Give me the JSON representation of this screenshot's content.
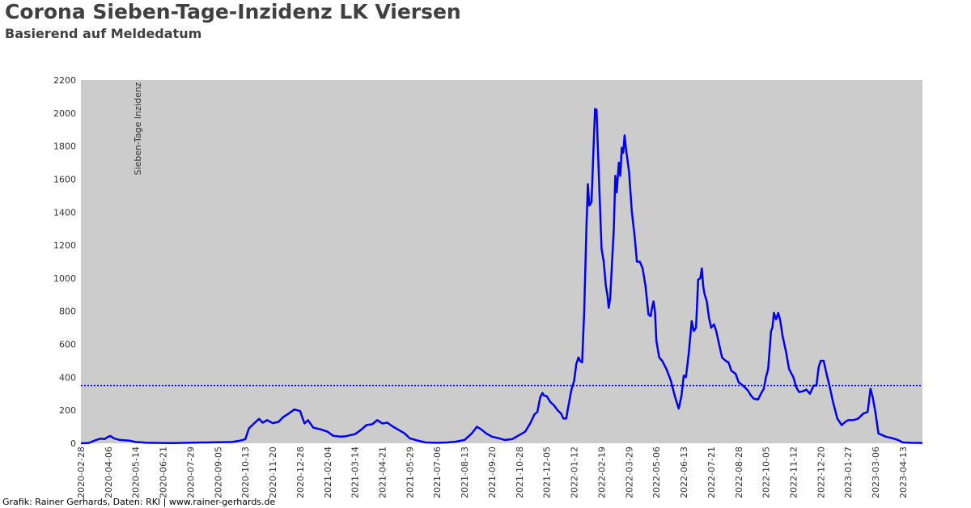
{
  "header": {
    "title": "Corona Sieben-Tage-Inzidenz LK Viersen",
    "subtitle": "Basierend auf Meldedatum"
  },
  "footer": {
    "credit": "Grafik: Rainer Gerhards, Daten: RKI | www.rainer-gerhards.de"
  },
  "colors": {
    "plot_background": "#cccccc",
    "line": "#0000ee",
    "threshold_line": "#0000cc"
  },
  "chart_data": {
    "type": "line",
    "title": "Corona Sieben-Tage-Inzidenz LK Viersen",
    "subtitle": "Basierend auf Meldedatum",
    "ylabel": "Sieben-Tage Inzidenz",
    "xlabel": "",
    "ylim": [
      0,
      2200
    ],
    "xlim": [
      "2020-02-28",
      "2023-05-10"
    ],
    "y_ticks": [
      0,
      200,
      400,
      600,
      800,
      1000,
      1200,
      1400,
      1600,
      1800,
      2000,
      2200
    ],
    "x_ticks": [
      "2020-02-28",
      "2020-04-06",
      "2020-05-14",
      "2020-06-21",
      "2020-07-29",
      "2020-09-05",
      "2020-10-13",
      "2020-11-20",
      "2020-12-28",
      "2021-02-04",
      "2021-03-14",
      "2021-04-21",
      "2021-05-29",
      "2021-07-06",
      "2021-08-13",
      "2021-09-20",
      "2021-10-28",
      "2021-12-05",
      "2022-01-12",
      "2022-02-19",
      "2022-03-29",
      "2022-05-06",
      "2022-06-13",
      "2022-07-21",
      "2022-08-28",
      "2022-10-05",
      "2022-11-12",
      "2022-12-20",
      "2023-01-27",
      "2023-03-06",
      "2023-04-13"
    ],
    "grid": false,
    "legend": "none",
    "reference_line": {
      "y": 350,
      "style": "dotted"
    },
    "series": [
      {
        "points": [
          [
            "2020-02-28",
            0
          ],
          [
            "2020-03-10",
            2
          ],
          [
            "2020-03-20",
            20
          ],
          [
            "2020-03-26",
            28
          ],
          [
            "2020-04-01",
            26
          ],
          [
            "2020-04-06",
            40
          ],
          [
            "2020-04-09",
            44
          ],
          [
            "2020-04-14",
            30
          ],
          [
            "2020-04-22",
            20
          ],
          [
            "2020-05-05",
            16
          ],
          [
            "2020-05-14",
            8
          ],
          [
            "2020-05-30",
            3
          ],
          [
            "2020-06-21",
            2
          ],
          [
            "2020-07-05",
            1
          ],
          [
            "2020-07-29",
            4
          ],
          [
            "2020-08-15",
            5
          ],
          [
            "2020-09-05",
            6
          ],
          [
            "2020-09-25",
            8
          ],
          [
            "2020-10-05",
            15
          ],
          [
            "2020-10-13",
            25
          ],
          [
            "2020-10-18",
            90
          ],
          [
            "2020-10-25",
            120
          ],
          [
            "2020-11-01",
            148
          ],
          [
            "2020-11-06",
            125
          ],
          [
            "2020-11-12",
            140
          ],
          [
            "2020-11-20",
            122
          ],
          [
            "2020-11-28",
            130
          ],
          [
            "2020-12-05",
            160
          ],
          [
            "2020-12-12",
            180
          ],
          [
            "2020-12-20",
            205
          ],
          [
            "2020-12-28",
            195
          ],
          [
            "2021-01-03",
            120
          ],
          [
            "2021-01-08",
            140
          ],
          [
            "2021-01-15",
            95
          ],
          [
            "2021-01-25",
            85
          ],
          [
            "2021-02-04",
            70
          ],
          [
            "2021-02-12",
            45
          ],
          [
            "2021-02-22",
            40
          ],
          [
            "2021-03-01",
            42
          ],
          [
            "2021-03-08",
            50
          ],
          [
            "2021-03-14",
            55
          ],
          [
            "2021-03-22",
            80
          ],
          [
            "2021-03-30",
            110
          ],
          [
            "2021-04-07",
            115
          ],
          [
            "2021-04-14",
            140
          ],
          [
            "2021-04-21",
            120
          ],
          [
            "2021-04-28",
            125
          ],
          [
            "2021-05-06",
            100
          ],
          [
            "2021-05-14",
            80
          ],
          [
            "2021-05-22",
            60
          ],
          [
            "2021-05-29",
            30
          ],
          [
            "2021-06-10",
            15
          ],
          [
            "2021-06-20",
            5
          ],
          [
            "2021-07-06",
            3
          ],
          [
            "2021-07-20",
            5
          ],
          [
            "2021-08-01",
            10
          ],
          [
            "2021-08-13",
            20
          ],
          [
            "2021-08-23",
            60
          ],
          [
            "2021-08-30",
            100
          ],
          [
            "2021-09-05",
            85
          ],
          [
            "2021-09-12",
            60
          ],
          [
            "2021-09-20",
            40
          ],
          [
            "2021-09-30",
            30
          ],
          [
            "2021-10-08",
            20
          ],
          [
            "2021-10-18",
            25
          ],
          [
            "2021-10-28",
            50
          ],
          [
            "2021-11-05",
            70
          ],
          [
            "2021-11-12",
            120
          ],
          [
            "2021-11-18",
            175
          ],
          [
            "2021-11-22",
            190
          ],
          [
            "2021-11-26",
            280
          ],
          [
            "2021-11-29",
            305
          ],
          [
            "2021-12-01",
            290
          ],
          [
            "2021-12-05",
            285
          ],
          [
            "2021-12-10",
            250
          ],
          [
            "2021-12-15",
            230
          ],
          [
            "2021-12-20",
            200
          ],
          [
            "2021-12-25",
            180
          ],
          [
            "2021-12-28",
            150
          ],
          [
            "2022-01-01",
            150
          ],
          [
            "2022-01-03",
            200
          ],
          [
            "2022-01-08",
            320
          ],
          [
            "2022-01-12",
            380
          ],
          [
            "2022-01-15",
            480
          ],
          [
            "2022-01-18",
            520
          ],
          [
            "2022-01-20",
            500
          ],
          [
            "2022-01-23",
            490
          ],
          [
            "2022-01-26",
            800
          ],
          [
            "2022-01-29",
            1300
          ],
          [
            "2022-01-31",
            1570
          ],
          [
            "2022-02-02",
            1440
          ],
          [
            "2022-02-05",
            1460
          ],
          [
            "2022-02-08",
            1800
          ],
          [
            "2022-02-10",
            2025
          ],
          [
            "2022-02-12",
            2020
          ],
          [
            "2022-02-15",
            1650
          ],
          [
            "2022-02-19",
            1180
          ],
          [
            "2022-02-22",
            1100
          ],
          [
            "2022-02-25",
            950
          ],
          [
            "2022-02-27",
            900
          ],
          [
            "2022-03-01",
            820
          ],
          [
            "2022-03-03",
            880
          ],
          [
            "2022-03-05",
            1050
          ],
          [
            "2022-03-08",
            1300
          ],
          [
            "2022-03-10",
            1620
          ],
          [
            "2022-03-12",
            1520
          ],
          [
            "2022-03-15",
            1700
          ],
          [
            "2022-03-17",
            1620
          ],
          [
            "2022-03-19",
            1790
          ],
          [
            "2022-03-21",
            1760
          ],
          [
            "2022-03-23",
            1865
          ],
          [
            "2022-03-25",
            1780
          ],
          [
            "2022-03-29",
            1650
          ],
          [
            "2022-04-02",
            1400
          ],
          [
            "2022-04-06",
            1250
          ],
          [
            "2022-04-09",
            1100
          ],
          [
            "2022-04-13",
            1100
          ],
          [
            "2022-04-17",
            1060
          ],
          [
            "2022-04-21",
            950
          ],
          [
            "2022-04-25",
            780
          ],
          [
            "2022-04-28",
            770
          ],
          [
            "2022-04-30",
            820
          ],
          [
            "2022-05-02",
            860
          ],
          [
            "2022-05-04",
            800
          ],
          [
            "2022-05-06",
            620
          ],
          [
            "2022-05-10",
            520
          ],
          [
            "2022-05-14",
            500
          ],
          [
            "2022-05-20",
            450
          ],
          [
            "2022-05-26",
            380
          ],
          [
            "2022-06-01",
            280
          ],
          [
            "2022-06-06",
            210
          ],
          [
            "2022-06-10",
            290
          ],
          [
            "2022-06-13",
            410
          ],
          [
            "2022-06-16",
            400
          ],
          [
            "2022-06-20",
            550
          ],
          [
            "2022-06-24",
            740
          ],
          [
            "2022-06-27",
            680
          ],
          [
            "2022-06-30",
            700
          ],
          [
            "2022-07-03",
            990
          ],
          [
            "2022-07-06",
            1000
          ],
          [
            "2022-07-08",
            1060
          ],
          [
            "2022-07-10",
            950
          ],
          [
            "2022-07-12",
            900
          ],
          [
            "2022-07-15",
            860
          ],
          [
            "2022-07-18",
            760
          ],
          [
            "2022-07-21",
            700
          ],
          [
            "2022-07-25",
            720
          ],
          [
            "2022-07-28",
            680
          ],
          [
            "2022-08-01",
            600
          ],
          [
            "2022-08-05",
            520
          ],
          [
            "2022-08-10",
            500
          ],
          [
            "2022-08-14",
            490
          ],
          [
            "2022-08-18",
            440
          ],
          [
            "2022-08-24",
            420
          ],
          [
            "2022-08-28",
            370
          ],
          [
            "2022-09-03",
            350
          ],
          [
            "2022-09-10",
            320
          ],
          [
            "2022-09-14",
            290
          ],
          [
            "2022-09-18",
            270
          ],
          [
            "2022-09-24",
            265
          ],
          [
            "2022-09-28",
            300
          ],
          [
            "2022-10-02",
            330
          ],
          [
            "2022-10-05",
            400
          ],
          [
            "2022-10-08",
            450
          ],
          [
            "2022-10-12",
            680
          ],
          [
            "2022-10-14",
            700
          ],
          [
            "2022-10-16",
            790
          ],
          [
            "2022-10-19",
            750
          ],
          [
            "2022-10-22",
            790
          ],
          [
            "2022-10-25",
            740
          ],
          [
            "2022-10-28",
            650
          ],
          [
            "2022-11-02",
            550
          ],
          [
            "2022-11-06",
            450
          ],
          [
            "2022-11-12",
            400
          ],
          [
            "2022-11-16",
            340
          ],
          [
            "2022-11-20",
            310
          ],
          [
            "2022-11-25",
            315
          ],
          [
            "2022-11-30",
            325
          ],
          [
            "2022-12-05",
            300
          ],
          [
            "2022-12-10",
            350
          ],
          [
            "2022-12-14",
            350
          ],
          [
            "2022-12-17",
            460
          ],
          [
            "2022-12-20",
            500
          ],
          [
            "2022-12-24",
            500
          ],
          [
            "2022-12-28",
            420
          ],
          [
            "2023-01-01",
            350
          ],
          [
            "2023-01-06",
            250
          ],
          [
            "2023-01-12",
            150
          ],
          [
            "2023-01-18",
            110
          ],
          [
            "2023-01-23",
            130
          ],
          [
            "2023-01-27",
            140
          ],
          [
            "2023-02-03",
            140
          ],
          [
            "2023-02-10",
            150
          ],
          [
            "2023-02-17",
            180
          ],
          [
            "2023-02-23",
            190
          ],
          [
            "2023-02-27",
            330
          ],
          [
            "2023-03-02",
            280
          ],
          [
            "2023-03-06",
            180
          ],
          [
            "2023-03-10",
            60
          ],
          [
            "2023-03-20",
            40
          ],
          [
            "2023-03-30",
            30
          ],
          [
            "2023-04-06",
            20
          ],
          [
            "2023-04-13",
            5
          ],
          [
            "2023-04-25",
            3
          ],
          [
            "2023-05-10",
            2
          ]
        ]
      }
    ]
  }
}
